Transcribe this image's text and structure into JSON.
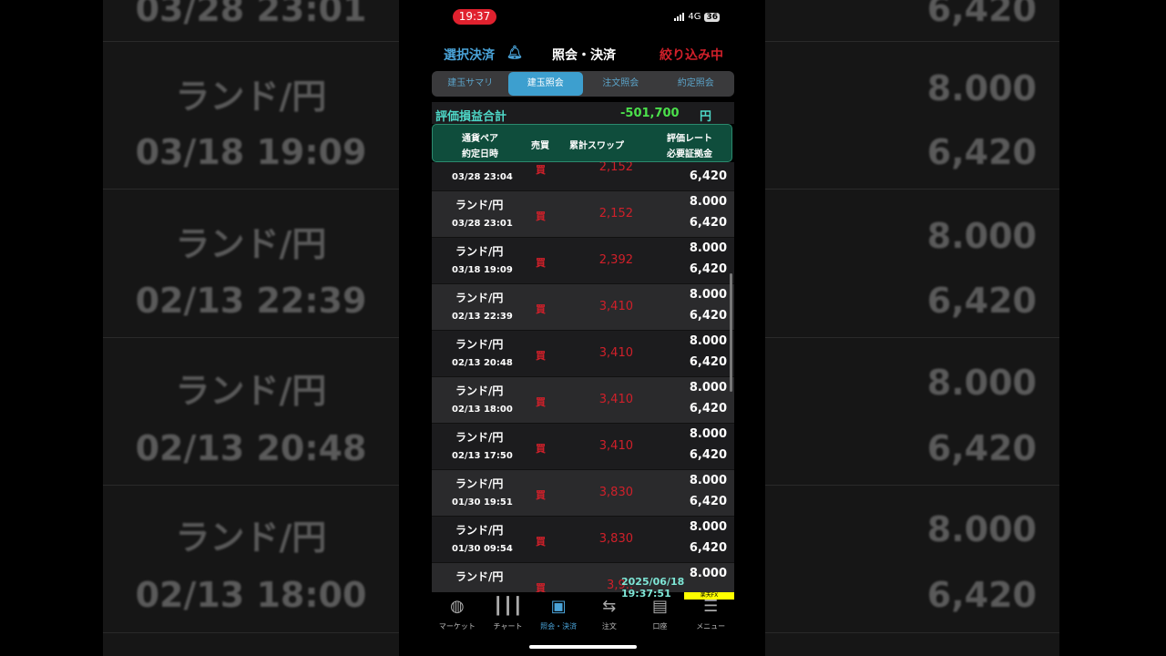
{
  "background": {
    "left": [
      "03/28 23:01",
      "ランド/円",
      "03/18 19:09",
      "ランド/円",
      "02/13 22:39",
      "ランド/円",
      "02/13 20:48",
      "ランド/円",
      "02/13 18:00"
    ],
    "right": [
      "6,420",
      "8.000",
      "6,420",
      "8.000",
      "6,420",
      "8.000",
      "6,420",
      "8.000",
      "6,420"
    ]
  },
  "status": {
    "time": "19:37",
    "network": "4G",
    "battery": "36"
  },
  "header": {
    "select_settle": "選択決済",
    "title": "照会・決済",
    "filter": "絞り込み中"
  },
  "tabs": [
    {
      "label": "建玉サマリ"
    },
    {
      "label": "建玉照会",
      "active": true
    },
    {
      "label": "注文照会"
    },
    {
      "label": "約定照会"
    }
  ],
  "summary": {
    "label": "評価損益合計",
    "value": "-501,700",
    "unit": "円"
  },
  "table_header": {
    "pair": "通貨ペア",
    "date": "約定日時",
    "side": "売買",
    "swap": "累計スワップ",
    "rate": "評価レート",
    "margin": "必要証拠金"
  },
  "rows": [
    {
      "pair": "",
      "date": "03/28 23:04",
      "side": "買",
      "swap": "2,152",
      "rate": "",
      "margin": "6,420"
    },
    {
      "pair": "ランド/円",
      "date": "03/28 23:01",
      "side": "買",
      "swap": "2,152",
      "rate": "8.000",
      "margin": "6,420"
    },
    {
      "pair": "ランド/円",
      "date": "03/18 19:09",
      "side": "買",
      "swap": "2,392",
      "rate": "8.000",
      "margin": "6,420"
    },
    {
      "pair": "ランド/円",
      "date": "02/13 22:39",
      "side": "買",
      "swap": "3,410",
      "rate": "8.000",
      "margin": "6,420"
    },
    {
      "pair": "ランド/円",
      "date": "02/13 20:48",
      "side": "買",
      "swap": "3,410",
      "rate": "8.000",
      "margin": "6,420"
    },
    {
      "pair": "ランド/円",
      "date": "02/13 18:00",
      "side": "買",
      "swap": "3,410",
      "rate": "8.000",
      "margin": "6,420"
    },
    {
      "pair": "ランド/円",
      "date": "02/13 17:50",
      "side": "買",
      "swap": "3,410",
      "rate": "8.000",
      "margin": "6,420"
    },
    {
      "pair": "ランド/円",
      "date": "01/30 19:51",
      "side": "買",
      "swap": "3,830",
      "rate": "8.000",
      "margin": "6,420"
    },
    {
      "pair": "ランド/円",
      "date": "01/30 09:54",
      "side": "買",
      "swap": "3,830",
      "rate": "8.000",
      "margin": "6,420"
    },
    {
      "pair": "ランド/円",
      "date": "",
      "side": "買",
      "swap": "3,9..",
      "rate": "8.000",
      "margin": ""
    }
  ],
  "timestamp": "2025/06/18 19:37:51",
  "brand": "楽天FX",
  "nav": [
    {
      "label": "マーケット",
      "icon": "globe-icon"
    },
    {
      "label": "チャート",
      "icon": "candlestick-icon"
    },
    {
      "label": "照会・決済",
      "icon": "square-icon",
      "active": true
    },
    {
      "label": "注文",
      "icon": "order-icon"
    },
    {
      "label": "口座",
      "icon": "safe-icon"
    },
    {
      "label": "メニュー",
      "icon": "menu-icon"
    }
  ]
}
